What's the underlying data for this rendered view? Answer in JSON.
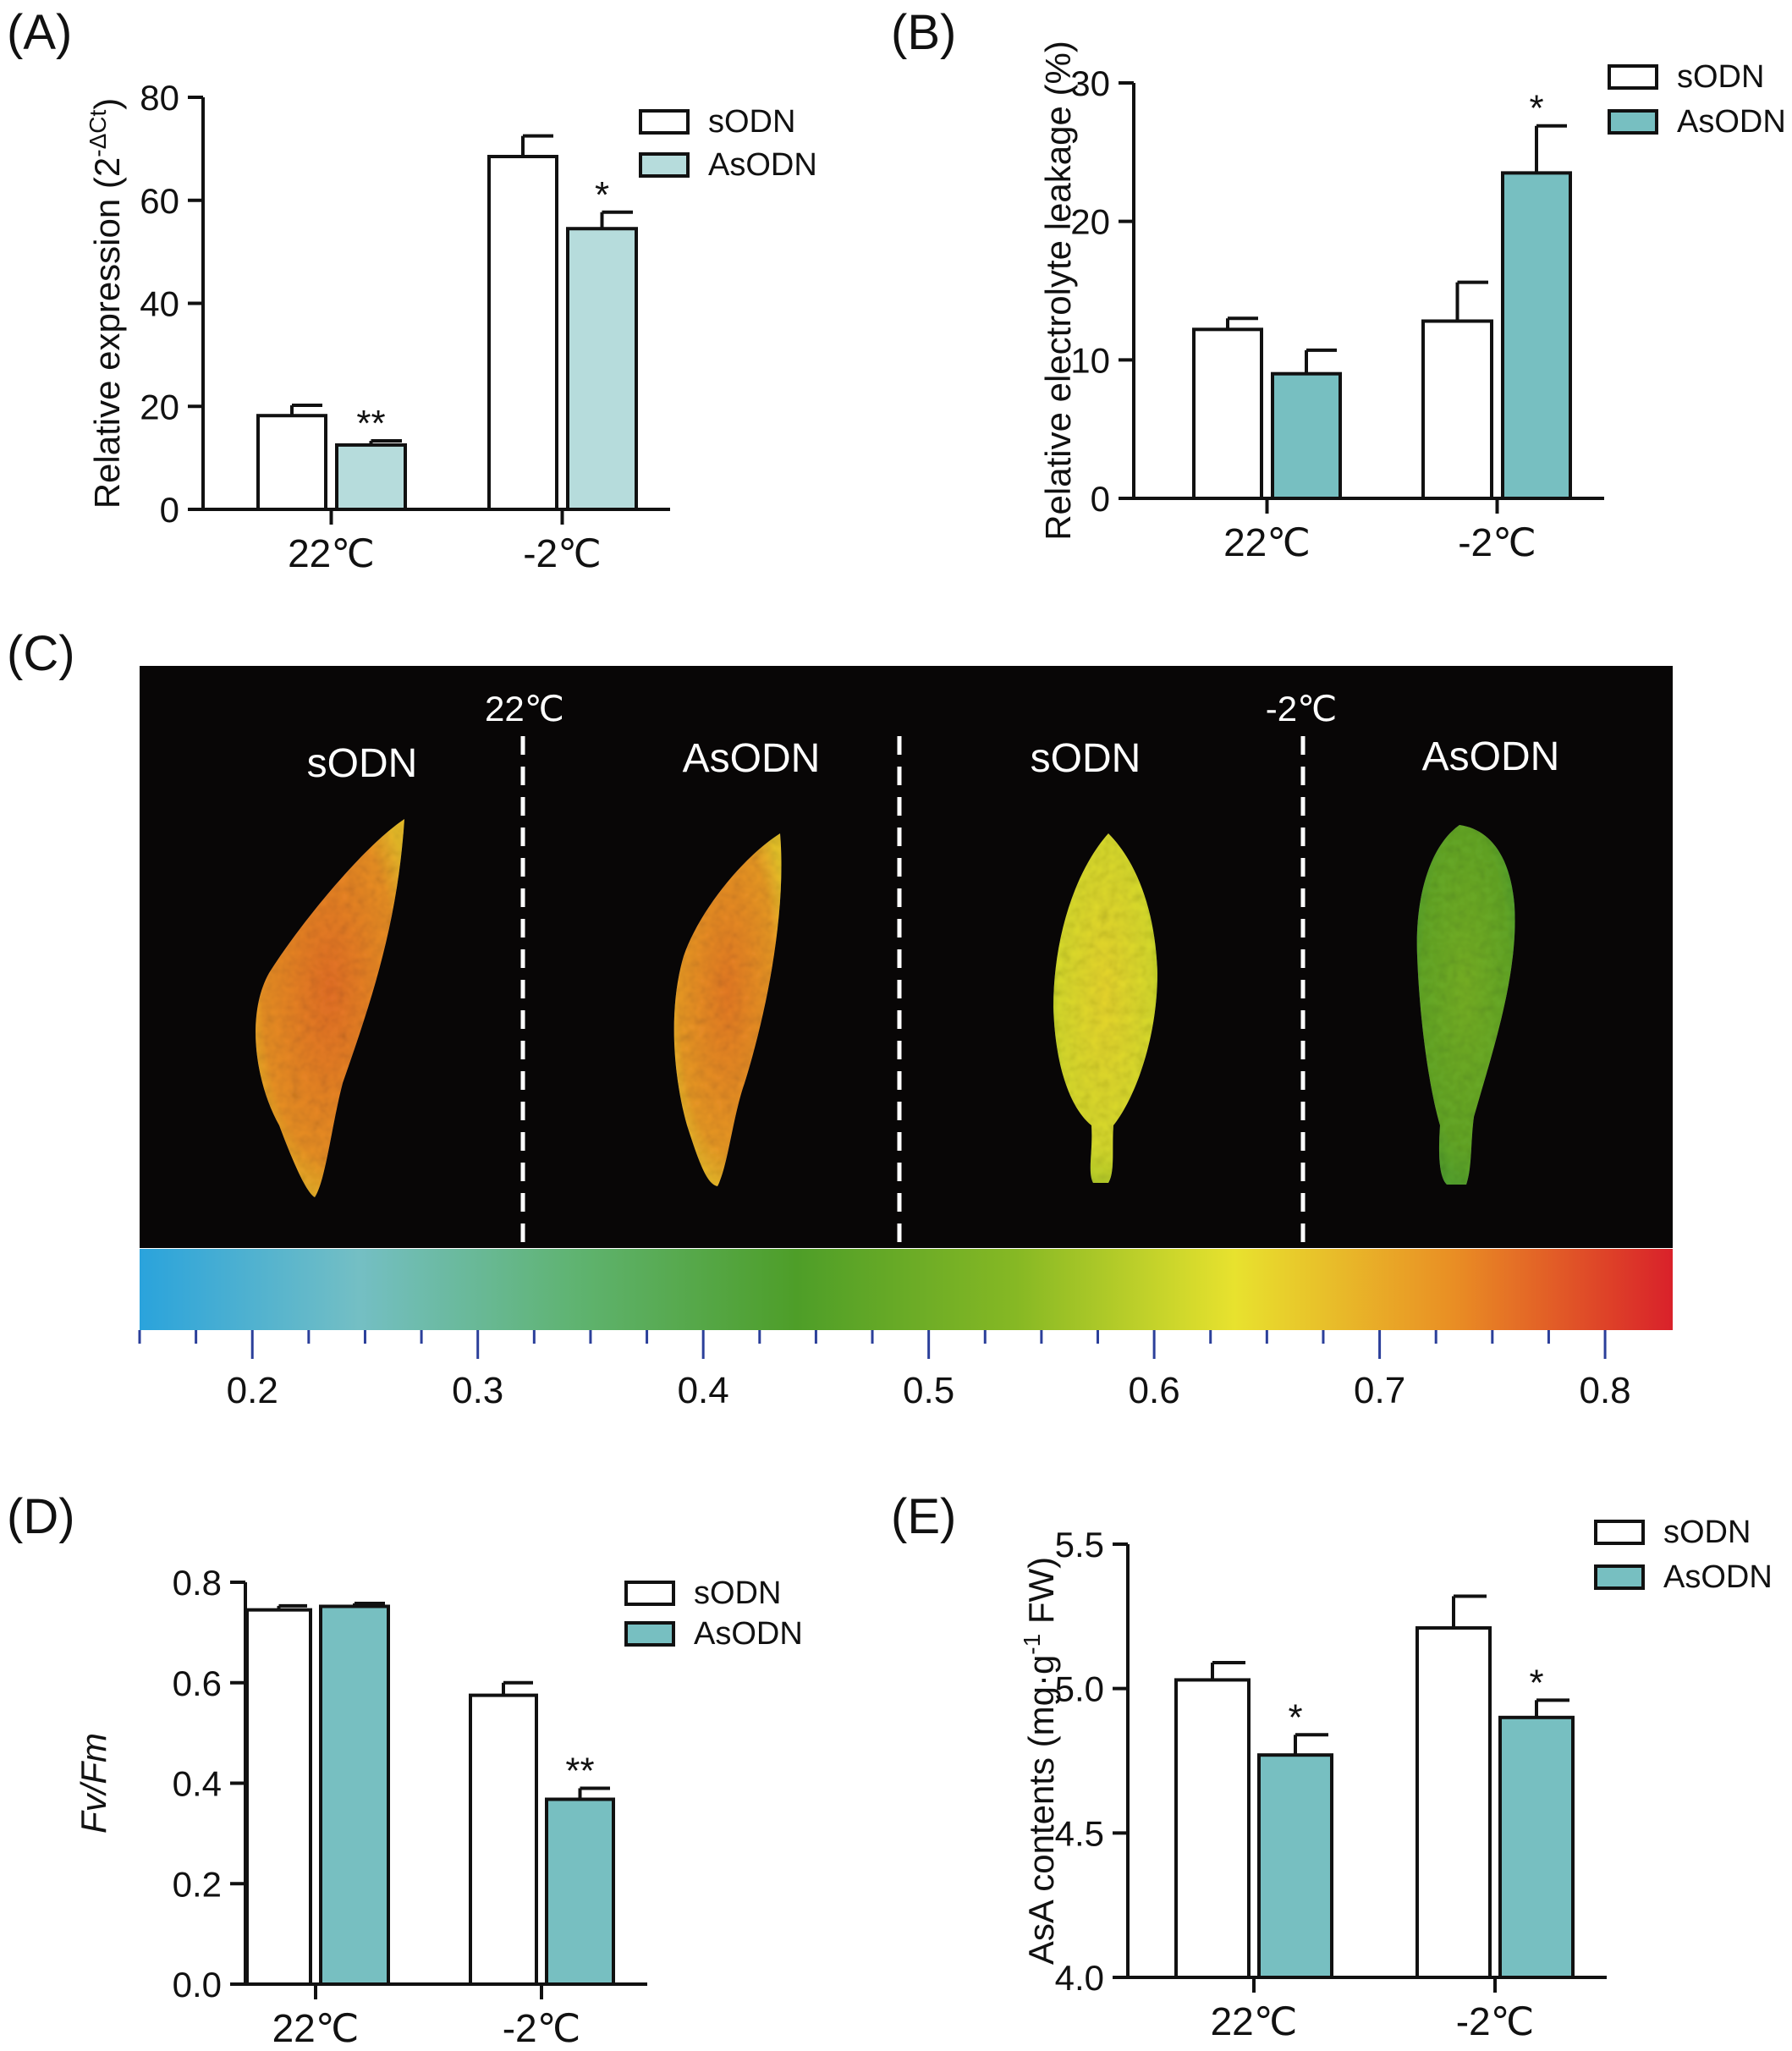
{
  "colors": {
    "sodn_fill": "#ffffff",
    "asodn_fill_A": "#b6dcdc",
    "asodn_fill": "#77bfc1",
    "ink": "#111111",
    "imaging_bg": "#080606",
    "tick_blue": "#2b3f9a"
  },
  "chart_data": [
    {
      "panel": "(A)",
      "type": "bar",
      "categories": [
        "22℃",
        "-2℃"
      ],
      "series": [
        {
          "name": "sODN",
          "values": [
            18.2,
            68.5
          ],
          "errors": [
            2.0,
            4.0
          ]
        },
        {
          "name": "AsODN",
          "values": [
            12.5,
            54.5
          ],
          "errors": [
            0.8,
            3.2
          ],
          "significance": [
            "**",
            "*"
          ]
        }
      ],
      "ylabel": "Relative expression (2",
      "ylabel_sup": "-ΔCt",
      "ylabel_close": ")",
      "ylim": [
        0,
        80
      ],
      "yticks": [
        "0",
        "20",
        "40",
        "60",
        "80"
      ],
      "legend": "top-right",
      "grid": false
    },
    {
      "panel": "(B)",
      "type": "bar",
      "categories": [
        "22℃",
        "-2℃"
      ],
      "series": [
        {
          "name": "sODN",
          "values": [
            12.2,
            12.8
          ],
          "errors": [
            0.8,
            2.8
          ]
        },
        {
          "name": "AsODN",
          "values": [
            9.0,
            23.5
          ],
          "errors": [
            1.7,
            3.4
          ],
          "significance": [
            "",
            "*"
          ]
        }
      ],
      "ylabel": "Relative electrolyte leakage (%)",
      "ylim": [
        0,
        30
      ],
      "yticks": [
        "0",
        "10",
        "20",
        "30"
      ],
      "legend": "top-right",
      "grid": false
    },
    {
      "panel": "(C)",
      "type": "heatmap",
      "temperature_labels": [
        "22℃",
        "-2℃"
      ],
      "column_labels": [
        "sODN",
        "AsODN",
        "sODN",
        "AsODN"
      ],
      "colorbar_ticks": [
        "0.2",
        "0.3",
        "0.4",
        "0.5",
        "0.6",
        "0.7",
        "0.8"
      ],
      "colorbar_range": [
        0.15,
        0.83
      ],
      "colorbar_colors": [
        "#2aa3dc",
        "#74bfc4",
        "#5fb370",
        "#4e9e28",
        "#86b824",
        "#e8e22e",
        "#e98e24",
        "#d9212a"
      ],
      "leaf_mean_levels": [
        0.73,
        0.72,
        0.62,
        0.48
      ]
    },
    {
      "panel": "(D)",
      "type": "bar",
      "categories": [
        "22℃",
        "-2℃"
      ],
      "series": [
        {
          "name": "sODN",
          "values": [
            0.745,
            0.575
          ],
          "errors": [
            0.008,
            0.025
          ]
        },
        {
          "name": "AsODN",
          "values": [
            0.752,
            0.368
          ],
          "errors": [
            0.006,
            0.022
          ],
          "significance": [
            "",
            "**"
          ]
        }
      ],
      "ylabel": "Fv/Fm",
      "ylim": [
        0,
        0.8
      ],
      "yticks": [
        "0.0",
        "0.2",
        "0.4",
        "0.6",
        "0.8"
      ],
      "legend": "top-right",
      "grid": false
    },
    {
      "panel": "(E)",
      "type": "bar",
      "categories": [
        "22℃",
        "-2℃"
      ],
      "series": [
        {
          "name": "sODN",
          "values": [
            5.03,
            5.21
          ],
          "errors": [
            0.06,
            0.11
          ]
        },
        {
          "name": "AsODN",
          "values": [
            4.77,
            4.9
          ],
          "errors": [
            0.07,
            0.06
          ],
          "significance": [
            "*",
            "*"
          ]
        }
      ],
      "ylabel": "AsA contents (mg·g",
      "ylabel_sup": "-1",
      "ylabel_close": " FW)",
      "ylim": [
        4.0,
        5.5
      ],
      "yticks": [
        "4.0",
        "4.5",
        "5.0",
        "5.5"
      ],
      "legend": "top-right",
      "grid": false
    }
  ]
}
